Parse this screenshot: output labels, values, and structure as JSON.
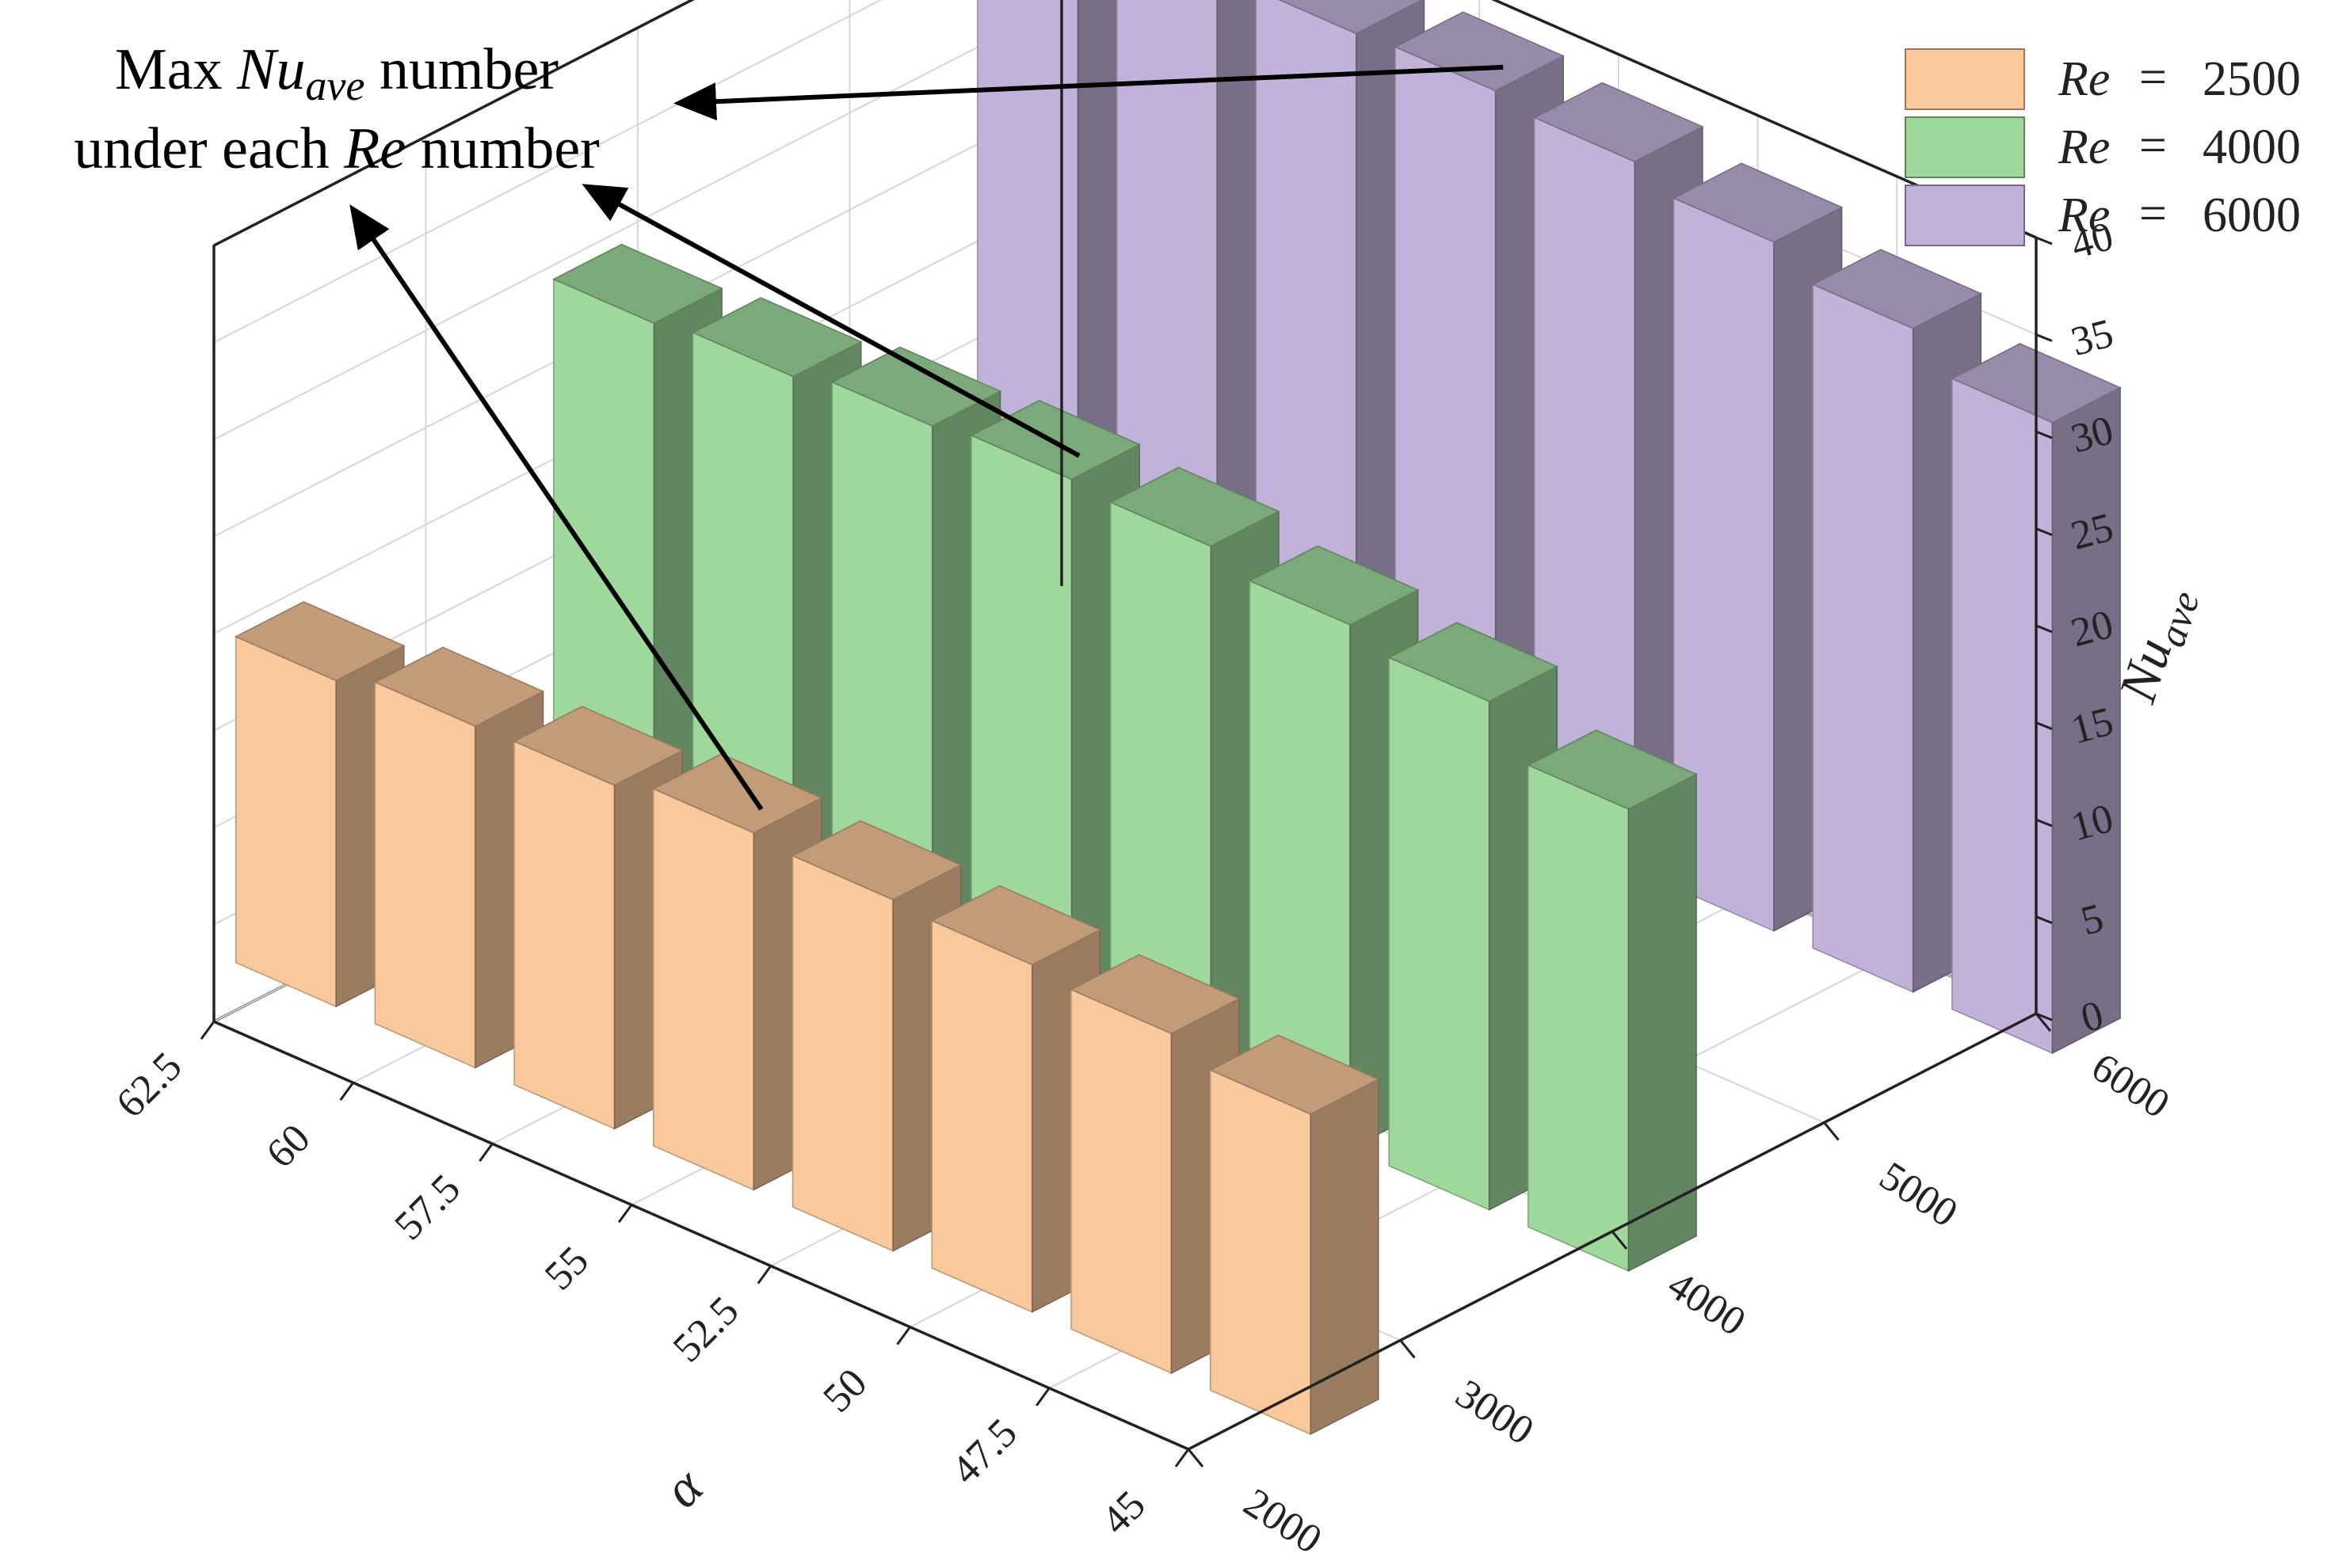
{
  "chart_data": {
    "type": "bar3d",
    "x_axis": {
      "label": "α",
      "ticks": [
        "45",
        "47.5",
        "50",
        "52.5",
        "55",
        "57.5",
        "60",
        "62.5"
      ]
    },
    "y_axis": {
      "label": "",
      "ticks": [
        "2000",
        "3000",
        "4000",
        "5000",
        "6000"
      ]
    },
    "z_axis": {
      "label_main": "Nu",
      "label_sub": "ave",
      "ticks": [
        "0",
        "5",
        "10",
        "15",
        "20",
        "25",
        "30",
        "35",
        "40"
      ],
      "range": [
        0,
        40
      ]
    },
    "x_positions": [
      45,
      47.5,
      50,
      52.5,
      55,
      57.5,
      60,
      62.5
    ],
    "y_range": [
      2000,
      6000
    ],
    "series": [
      {
        "name": "Re = 2500",
        "legend_var": "Re",
        "legend_eq": "=",
        "legend_value": "2500",
        "re": 2500,
        "color": "#F9C89B",
        "values": [
          16.5,
          17.5,
          17.9,
          18.1,
          18.4,
          17.7,
          17.6,
          16.8
        ]
      },
      {
        "name": "Re = 4000",
        "legend_var": "Re",
        "legend_eq": "=",
        "legend_value": "4000",
        "re": 4000,
        "color": "#9ED99B",
        "values": [
          23.8,
          26.2,
          27.0,
          27.9,
          28.2,
          27.8,
          27.2,
          26.8
        ]
      },
      {
        "name": "Re = 6000",
        "legend_var": "Re",
        "legend_eq": "=",
        "legend_value": "6000",
        "re": 6000,
        "color": "#C1B2DA",
        "values": [
          32.5,
          34.2,
          35.5,
          36.5,
          37.0,
          36.8,
          36.5,
          35.8
        ]
      }
    ],
    "grid": true,
    "legend_position": "top-right"
  },
  "annotation": {
    "line1_prefix": "Max ",
    "line1_var": "Nu",
    "line1_sub": "ave",
    "line1_suffix": " number",
    "line2_prefix": "under each ",
    "line2_var": "Re",
    "line2_suffix": " number"
  }
}
